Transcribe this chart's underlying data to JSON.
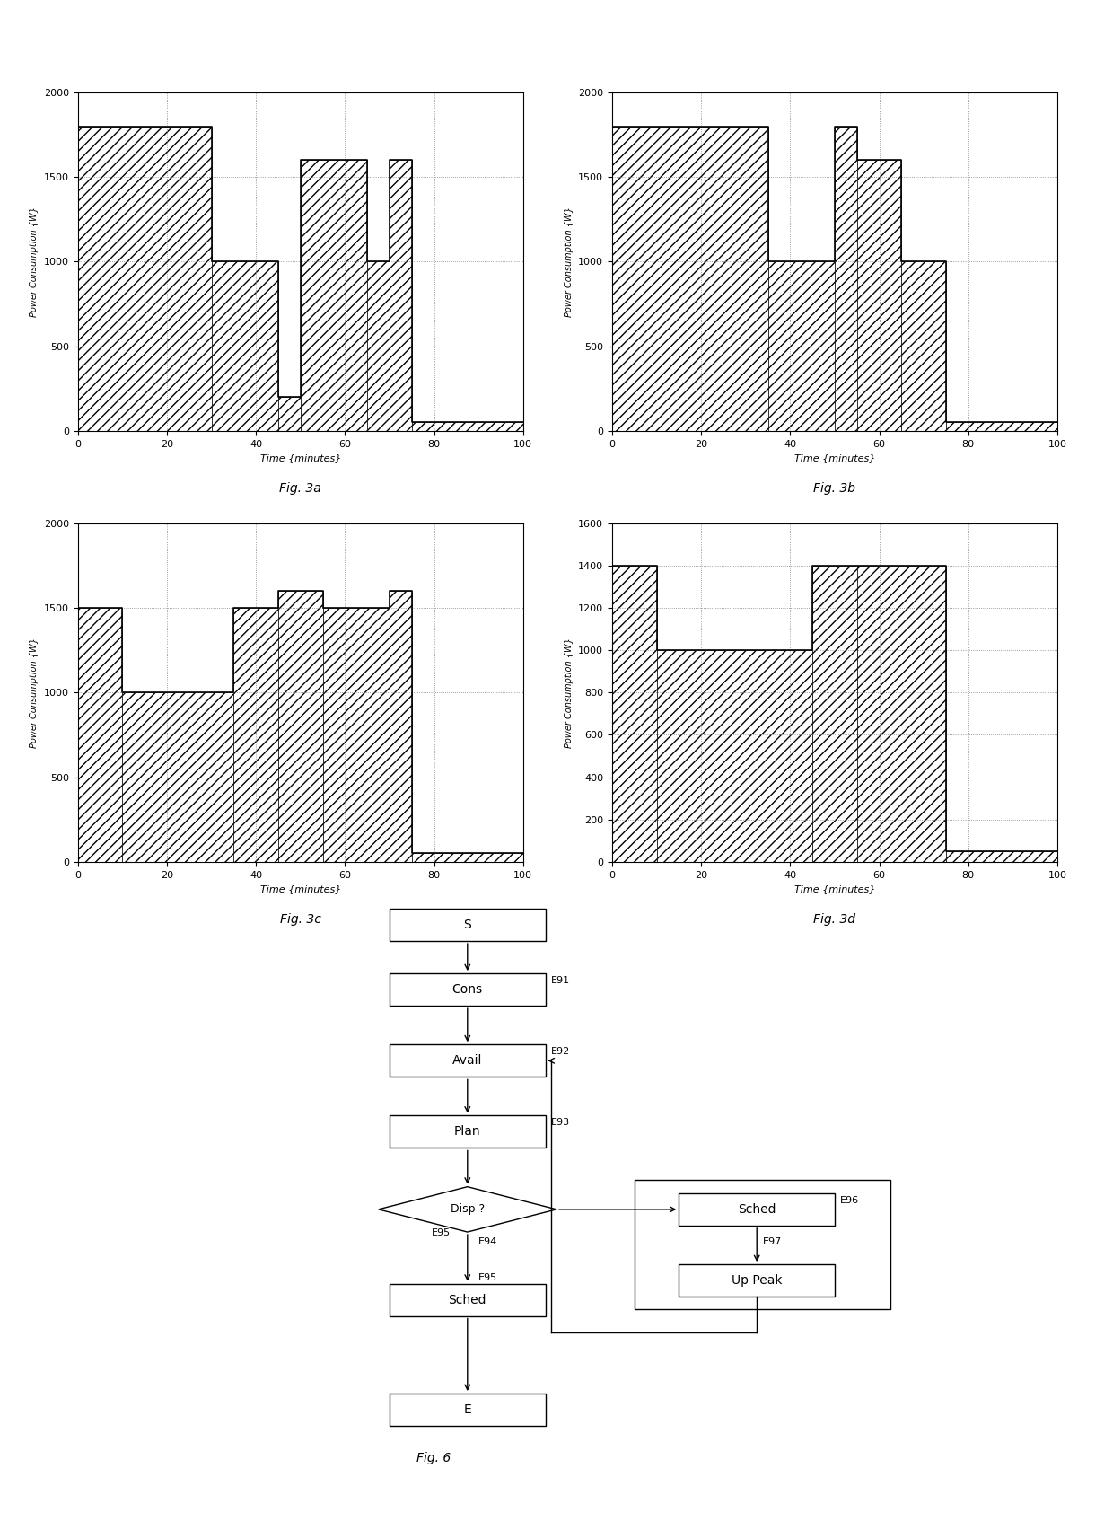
{
  "fig3a": {
    "title": "Fig. 3a",
    "xlabel": "Time {minutes}",
    "ylabel": "Power Consumption {W}",
    "xlim": [
      0,
      100
    ],
    "ylim": [
      0,
      2000
    ],
    "yticks": [
      0,
      500,
      1000,
      1500,
      2000
    ],
    "xticks": [
      0,
      20,
      40,
      60,
      80,
      100
    ],
    "x": [
      0,
      30,
      30,
      45,
      45,
      50,
      50,
      65,
      65,
      70,
      70,
      75,
      75,
      100
    ],
    "y": [
      1800,
      1800,
      1000,
      1000,
      200,
      200,
      1600,
      1600,
      1000,
      1000,
      1600,
      1600,
      50,
      50
    ]
  },
  "fig3b": {
    "title": "Fig. 3b",
    "xlabel": "Time {minutes}",
    "ylabel": "Power Consumption {W}",
    "xlim": [
      0,
      100
    ],
    "ylim": [
      0,
      2000
    ],
    "yticks": [
      0,
      500,
      1000,
      1500,
      2000
    ],
    "xticks": [
      0,
      20,
      40,
      60,
      80,
      100
    ],
    "x": [
      0,
      35,
      35,
      50,
      50,
      55,
      55,
      65,
      65,
      75,
      75,
      100
    ],
    "y": [
      1800,
      1800,
      1000,
      1000,
      1800,
      1800,
      1600,
      1600,
      1000,
      1000,
      50,
      50
    ]
  },
  "fig3c": {
    "title": "Fig. 3c",
    "xlabel": "Time {minutes}",
    "ylabel": "Power Consumption {W}",
    "xlim": [
      0,
      100
    ],
    "ylim": [
      0,
      2000
    ],
    "yticks": [
      0,
      500,
      1000,
      1500,
      2000
    ],
    "xticks": [
      0,
      20,
      40,
      60,
      80,
      100
    ],
    "x": [
      0,
      10,
      10,
      35,
      35,
      45,
      45,
      50,
      50,
      65,
      65,
      75,
      75,
      100
    ],
    "y": [
      1500,
      1500,
      1000,
      1000,
      1500,
      1500,
      1600,
      1600,
      1500,
      1500,
      1600,
      1600,
      50,
      50
    ]
  },
  "fig3d": {
    "title": "Fig. 3d",
    "xlabel": "Time {minutes}",
    "ylabel": "Power Consumption {W}",
    "xlim": [
      0,
      100
    ],
    "ylim": [
      0,
      1600
    ],
    "yticks": [
      0,
      200,
      400,
      600,
      800,
      1000,
      1200,
      1400,
      1600
    ],
    "xticks": [
      0,
      20,
      40,
      60,
      80,
      100
    ],
    "x": [
      0,
      10,
      10,
      45,
      45,
      55,
      55,
      75,
      75,
      100
    ],
    "y": [
      1400,
      1400,
      1000,
      1000,
      1400,
      1400,
      1400,
      1400,
      50,
      50
    ]
  },
  "flowchart": {
    "title": "Fig. 6"
  },
  "bg_color": "#ffffff",
  "line_color": "#000000",
  "hatch": "///",
  "linewidth": 1.5
}
